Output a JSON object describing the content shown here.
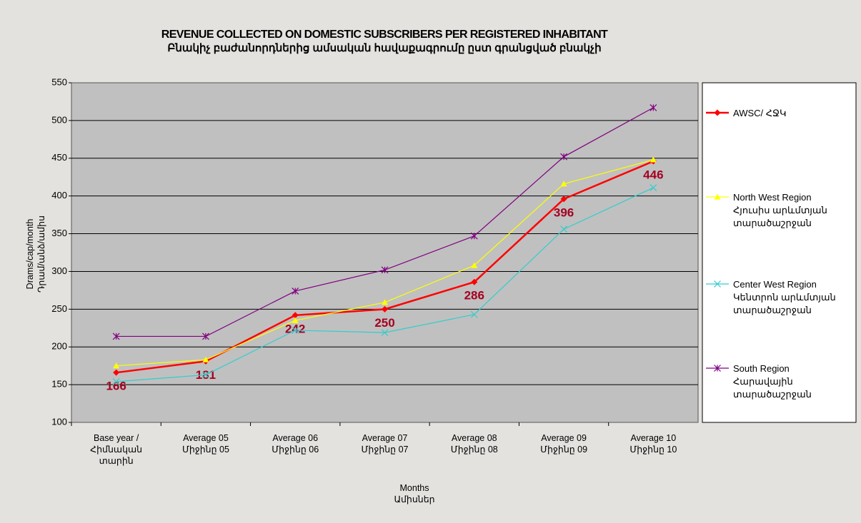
{
  "chart_data": {
    "type": "line",
    "title": "REVENUE COLLECTED ON DOMESTIC SUBSCRIBERS PER REGISTERED INHABITANT",
    "subtitle": "Բնակիչ բաժանորդներից ամսական հավաքագրումը ըստ գրանցված բնակչի",
    "x_label": "Months\nԱմիսներ",
    "y_label": "Drams/cap/month\nԴրամ/անձ/ամիս",
    "categories": [
      "Base year /\nՀիմնական\nտարին",
      "Average 05\nՄիջինը 05",
      "Average 06\nՄիջինը 06",
      "Average 07\nՄիջինը 07",
      "Average 08\nՄիջինը 08",
      "Average 09\nՄիջինը 09",
      "Average 10\nՄիջինը 10"
    ],
    "series": [
      {
        "name": "AWSC/ ՀՋԿ",
        "color": "#ff0000",
        "marker": "diamond",
        "values": [
          166,
          181,
          242,
          250,
          286,
          396,
          446
        ],
        "label_color": "#a50021"
      },
      {
        "name": "North West Region\nՀյուսիս արևմտյան\nտարածաշրջան",
        "color": "#ffff00",
        "marker": "triangle",
        "values": [
          175,
          183,
          235,
          259,
          308,
          416,
          448
        ]
      },
      {
        "name": "Center West Region\nԿենտրոն արևմտյան\nտարածաշրջան",
        "color": "#33cccc",
        "marker": "x",
        "values": [
          154,
          163,
          222,
          219,
          243,
          356,
          411
        ]
      },
      {
        "name": "South Region\nՀարավային\nտարածաշրջան",
        "color": "#800080",
        "marker": "star",
        "values": [
          214,
          214,
          274,
          302,
          347,
          452,
          517
        ]
      }
    ],
    "ylim": [
      100,
      550
    ],
    "yticks": [
      100,
      150,
      200,
      250,
      300,
      350,
      400,
      450,
      500,
      550
    ],
    "grid": true
  }
}
